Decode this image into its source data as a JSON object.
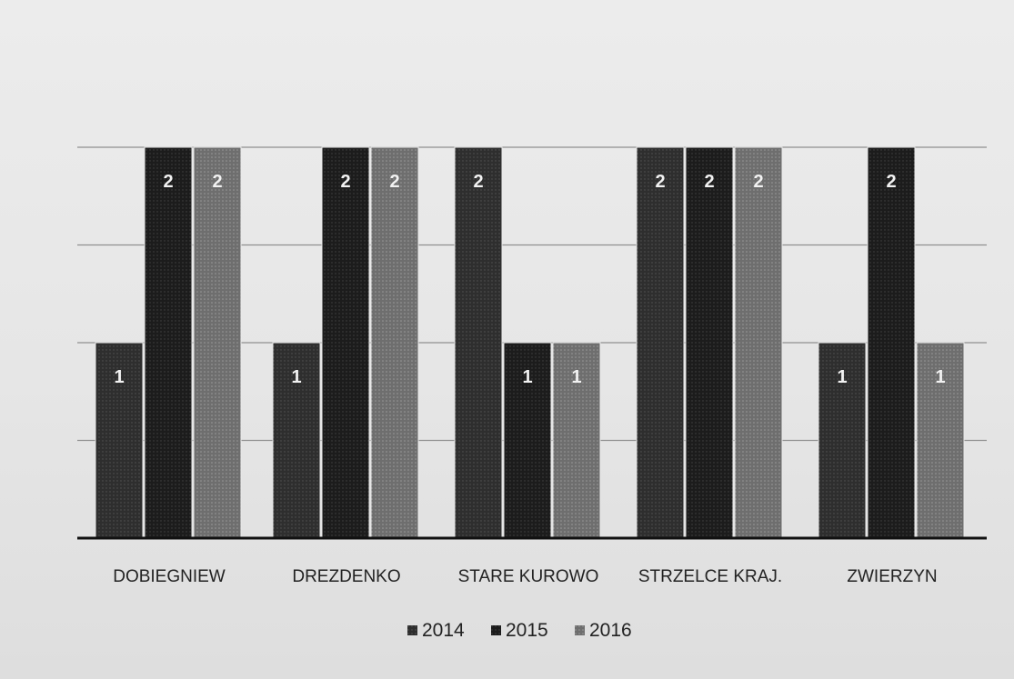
{
  "chart_data": {
    "type": "bar",
    "categories": [
      "DOBIEGNIEW",
      "DREZDENKO",
      "STARE KUROWO",
      "STRZELCE KRAJ.",
      "ZWIERZYN"
    ],
    "series": [
      {
        "name": "2014",
        "values": [
          1,
          1,
          2,
          2,
          1
        ],
        "color": "#2e2e2e"
      },
      {
        "name": "2015",
        "values": [
          2,
          2,
          1,
          2,
          2
        ],
        "color": "#1c1c1c"
      },
      {
        "name": "2016",
        "values": [
          2,
          2,
          1,
          2,
          1
        ],
        "color": "#6e6e6e"
      }
    ],
    "data_labels": true,
    "ylim": [
      0,
      2.2
    ],
    "grid": true,
    "legend_position": "bottom"
  }
}
